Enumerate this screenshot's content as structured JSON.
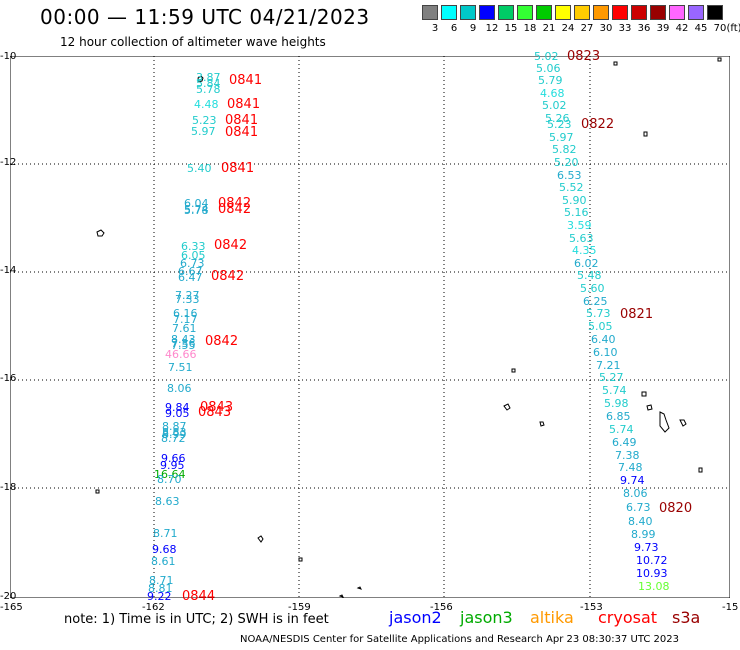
{
  "header": {
    "title": "00:00 — 11:59 UTC 04/21/2023",
    "subtitle": "12 hour collection of altimeter wave heights"
  },
  "legend": {
    "unit": "(ft)",
    "bins": [
      {
        "label": "3",
        "color": "#808080"
      },
      {
        "label": "6",
        "color": "#00ffff"
      },
      {
        "label": "9",
        "color": "#00c8c8"
      },
      {
        "label": "12",
        "color": "#0000ff"
      },
      {
        "label": "15",
        "color": "#00cc66"
      },
      {
        "label": "18",
        "color": "#33ff33"
      },
      {
        "label": "21",
        "color": "#00cc00"
      },
      {
        "label": "24",
        "color": "#ffff00"
      },
      {
        "label": "27",
        "color": "#ffcc00"
      },
      {
        "label": "30",
        "color": "#ff9900"
      },
      {
        "label": "33",
        "color": "#ff0000"
      },
      {
        "label": "36",
        "color": "#cc0000"
      },
      {
        "label": "39",
        "color": "#990000"
      },
      {
        "label": "42",
        "color": "#ff66ff"
      },
      {
        "label": "45",
        "color": "#9966ff"
      },
      {
        "label": "70",
        "color": "#000000"
      }
    ]
  },
  "axes": {
    "y_ticks": [
      "-10",
      "-12",
      "-14",
      "-16",
      "-18",
      "-20"
    ],
    "x_ticks": [
      "-165",
      "-162",
      "-159",
      "-156",
      "-153",
      "-15"
    ]
  },
  "west_track": {
    "values": [
      {
        "text": "3.87",
        "color": "#22cccc"
      },
      {
        "text": "5.84",
        "color": "#22cccc"
      },
      {
        "text": "5.78",
        "color": "#22cccc"
      },
      {
        "text": "4.48",
        "color": "#22dddd"
      },
      {
        "text": "5.23",
        "color": "#22cccc"
      },
      {
        "text": "5.97",
        "color": "#22cccc"
      },
      {
        "text": "5.40",
        "color": "#22cccc"
      },
      {
        "text": "6.04",
        "color": "#22aacc"
      },
      {
        "text": "5.74",
        "color": "#22aacc"
      },
      {
        "text": "5.78",
        "color": "#22aacc"
      },
      {
        "text": "6.33",
        "color": "#22cccc"
      },
      {
        "text": "6.05",
        "color": "#22cccc"
      },
      {
        "text": "6.73",
        "color": "#22aacc"
      },
      {
        "text": "6.67",
        "color": "#22aacc"
      },
      {
        "text": "6.47",
        "color": "#22aacc"
      },
      {
        "text": "7.27",
        "color": "#22aacc"
      },
      {
        "text": "7.33",
        "color": "#22aacc"
      },
      {
        "text": "6.16",
        "color": "#22aacc"
      },
      {
        "text": "7.17",
        "color": "#22aacc"
      },
      {
        "text": "7.61",
        "color": "#22aacc"
      },
      {
        "text": "8.43",
        "color": "#22aacc"
      },
      {
        "text": "7.36",
        "color": "#22aacc"
      },
      {
        "text": "7.55",
        "color": "#22aacc"
      },
      {
        "text": "46.66",
        "color": "#ff88cc"
      },
      {
        "text": "7.51",
        "color": "#22aacc"
      },
      {
        "text": "8.06",
        "color": "#22aacc"
      },
      {
        "text": "9.84",
        "color": "#0000ff"
      },
      {
        "text": "9.05",
        "color": "#0000ff"
      },
      {
        "text": "8.87",
        "color": "#22aacc"
      },
      {
        "text": "8.83",
        "color": "#22aacc"
      },
      {
        "text": "8.99",
        "color": "#22aacc"
      },
      {
        "text": "8.72",
        "color": "#22aacc"
      },
      {
        "text": "9.66",
        "color": "#0000ff"
      },
      {
        "text": "9.95",
        "color": "#0000ff"
      },
      {
        "text": "16.64",
        "color": "#00aa00"
      },
      {
        "text": "8.70",
        "color": "#22aacc"
      },
      {
        "text": "8.63",
        "color": "#22aacc"
      },
      {
        "text": "8.71",
        "color": "#22aacc"
      },
      {
        "text": "9.68",
        "color": "#0000ff"
      },
      {
        "text": "8.61",
        "color": "#22aacc"
      },
      {
        "text": "8.71",
        "color": "#22aacc"
      },
      {
        "text": "8.81",
        "color": "#22aacc"
      },
      {
        "text": "9.22",
        "color": "#0000ff"
      }
    ],
    "times": [
      {
        "text": "0841"
      },
      {
        "text": "0841"
      },
      {
        "text": "0841"
      },
      {
        "text": "0841"
      },
      {
        "text": "0841"
      },
      {
        "text": "0842"
      },
      {
        "text": "0842"
      },
      {
        "text": "0842"
      },
      {
        "text": "0842"
      },
      {
        "text": "0842"
      },
      {
        "text": "0843"
      },
      {
        "text": "0843"
      },
      {
        "text": "0844"
      }
    ]
  },
  "east_track": {
    "values": [
      {
        "text": "5.02",
        "color": "#22cccc"
      },
      {
        "text": "5.06",
        "color": "#22cccc"
      },
      {
        "text": "5.79",
        "color": "#22cccc"
      },
      {
        "text": "4.68",
        "color": "#22dddd"
      },
      {
        "text": "5.02",
        "color": "#22cccc"
      },
      {
        "text": "5.26",
        "color": "#22cccc"
      },
      {
        "text": "5.23",
        "color": "#22cccc"
      },
      {
        "text": "5.97",
        "color": "#22cccc"
      },
      {
        "text": "5.82",
        "color": "#22cccc"
      },
      {
        "text": "5.20",
        "color": "#22cccc"
      },
      {
        "text": "6.53",
        "color": "#22aacc"
      },
      {
        "text": "5.52",
        "color": "#22cccc"
      },
      {
        "text": "5.90",
        "color": "#22cccc"
      },
      {
        "text": "5.16",
        "color": "#22cccc"
      },
      {
        "text": "3.59",
        "color": "#22dddd"
      },
      {
        "text": "5.63",
        "color": "#22cccc"
      },
      {
        "text": "4.35",
        "color": "#22dddd"
      },
      {
        "text": "6.02",
        "color": "#22aacc"
      },
      {
        "text": "5.48",
        "color": "#22cccc"
      },
      {
        "text": "5.60",
        "color": "#22cccc"
      },
      {
        "text": "6.25",
        "color": "#22aacc"
      },
      {
        "text": "5.73",
        "color": "#22cccc"
      },
      {
        "text": "5.05",
        "color": "#22cccc"
      },
      {
        "text": "6.40",
        "color": "#22aacc"
      },
      {
        "text": "6.10",
        "color": "#22aacc"
      },
      {
        "text": "7.21",
        "color": "#22aacc"
      },
      {
        "text": "5.27",
        "color": "#22cccc"
      },
      {
        "text": "5.74",
        "color": "#22cccc"
      },
      {
        "text": "5.98",
        "color": "#22cccc"
      },
      {
        "text": "6.85",
        "color": "#22aacc"
      },
      {
        "text": "5.74",
        "color": "#22cccc"
      },
      {
        "text": "6.49",
        "color": "#22aacc"
      },
      {
        "text": "7.38",
        "color": "#22aacc"
      },
      {
        "text": "7.48",
        "color": "#22aacc"
      },
      {
        "text": "9.74",
        "color": "#0000ff"
      },
      {
        "text": "8.06",
        "color": "#22aacc"
      },
      {
        "text": "6.73",
        "color": "#22aacc"
      },
      {
        "text": "8.40",
        "color": "#22aacc"
      },
      {
        "text": "8.99",
        "color": "#22aacc"
      },
      {
        "text": "9.73",
        "color": "#0000ff"
      },
      {
        "text": "10.72",
        "color": "#0000ff"
      },
      {
        "text": "10.93",
        "color": "#0000ff"
      },
      {
        "text": "13.08",
        "color": "#66ff33"
      }
    ],
    "times": [
      {
        "text": "0823"
      },
      {
        "text": "0822"
      },
      {
        "text": "0821"
      },
      {
        "text": "0820"
      }
    ]
  },
  "footer": {
    "note": "note:  1) Time is in UTC;  2) SWH is in feet",
    "satellites": [
      {
        "name": "jason2",
        "color": "#0000ff"
      },
      {
        "name": "jason3",
        "color": "#00aa00"
      },
      {
        "name": "altika",
        "color": "#ff9900"
      },
      {
        "name": "cryosat",
        "color": "#ff0000"
      },
      {
        "name": "s3a",
        "color": "#990000"
      }
    ],
    "credit": "NOAA/NESDIS Center for Satellite Applications and Research    Apr 23 08:30:37 UTC 2023"
  }
}
